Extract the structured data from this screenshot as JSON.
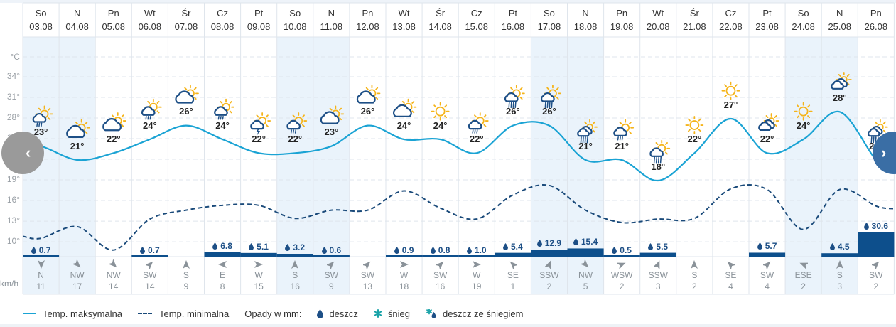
{
  "axis": {
    "unit_label": "°C",
    "y_ticks": [
      "34°",
      "31°",
      "28°",
      "25°",
      "22°",
      "19°",
      "16°",
      "13°",
      "10°"
    ],
    "y_tick_values": [
      34,
      31,
      28,
      25,
      22,
      19,
      16,
      13,
      10
    ],
    "wind_unit": "km/h"
  },
  "days": [
    {
      "dow": "So",
      "date": "03.08",
      "weekend": true,
      "icon": "rain-sun",
      "max": 23,
      "min": 10.5,
      "precip": "0.7",
      "precip_val": 0.7,
      "wind_dir": "N",
      "wind_speed": "11",
      "wind_rot": 180
    },
    {
      "dow": "N",
      "date": "04.08",
      "weekend": true,
      "icon": "cloud-sun",
      "max": 21,
      "min": 12.2,
      "precip": "",
      "precip_val": 0,
      "wind_dir": "NW",
      "wind_speed": "17",
      "wind_rot": 135
    },
    {
      "dow": "Pn",
      "date": "05.08",
      "weekend": false,
      "icon": "cloud-sun",
      "max": 22,
      "min": 8.8,
      "precip": "",
      "precip_val": 0,
      "wind_dir": "NW",
      "wind_speed": "14",
      "wind_rot": 135
    },
    {
      "dow": "Wt",
      "date": "06.08",
      "weekend": false,
      "icon": "rain-sun",
      "max": 24,
      "min": 13.3,
      "precip": "0.7",
      "precip_val": 0.7,
      "wind_dir": "SW",
      "wind_speed": "14",
      "wind_rot": 45
    },
    {
      "dow": "Śr",
      "date": "07.08",
      "weekend": false,
      "icon": "cloud-sun",
      "max": 26,
      "min": 14.6,
      "precip": "",
      "precip_val": 0,
      "wind_dir": "S",
      "wind_speed": "9",
      "wind_rot": 0
    },
    {
      "dow": "Cz",
      "date": "08.08",
      "weekend": false,
      "icon": "rain-sun",
      "max": 24,
      "min": 15.3,
      "precip": "6.8",
      "precip_val": 6.8,
      "wind_dir": "E",
      "wind_speed": "8",
      "wind_rot": 270
    },
    {
      "dow": "Pt",
      "date": "09.08",
      "weekend": false,
      "icon": "storm-sun",
      "max": 22,
      "min": 15.3,
      "precip": "5.1",
      "precip_val": 5.1,
      "wind_dir": "W",
      "wind_speed": "15",
      "wind_rot": 90
    },
    {
      "dow": "So",
      "date": "10.08",
      "weekend": true,
      "icon": "rain-sun",
      "max": 22,
      "min": 13.4,
      "precip": "3.2",
      "precip_val": 3.2,
      "wind_dir": "S",
      "wind_speed": "16",
      "wind_rot": 0
    },
    {
      "dow": "N",
      "date": "11.08",
      "weekend": true,
      "icon": "cloud-sun",
      "max": 23,
      "min": 14.6,
      "precip": "0.6",
      "precip_val": 0.6,
      "wind_dir": "SW",
      "wind_speed": "9",
      "wind_rot": 45
    },
    {
      "dow": "Pn",
      "date": "12.08",
      "weekend": false,
      "icon": "cloud-sun",
      "max": 26,
      "min": 14.6,
      "precip": "",
      "precip_val": 0,
      "wind_dir": "SW",
      "wind_speed": "13",
      "wind_rot": 45
    },
    {
      "dow": "Wt",
      "date": "13.08",
      "weekend": false,
      "icon": "cloud-sun",
      "max": 24,
      "min": 17.4,
      "precip": "0.9",
      "precip_val": 0.9,
      "wind_dir": "W",
      "wind_speed": "18",
      "wind_rot": 90
    },
    {
      "dow": "Śr",
      "date": "14.08",
      "weekend": false,
      "icon": "sun",
      "max": 24,
      "min": 14.9,
      "precip": "0.8",
      "precip_val": 0.8,
      "wind_dir": "SW",
      "wind_speed": "16",
      "wind_rot": 45
    },
    {
      "dow": "Cz",
      "date": "15.08",
      "weekend": false,
      "icon": "rain-sun",
      "max": 22,
      "min": 13.3,
      "precip": "1.0",
      "precip_val": 1.0,
      "wind_dir": "W",
      "wind_speed": "19",
      "wind_rot": 90
    },
    {
      "dow": "Pt",
      "date": "16.08",
      "weekend": false,
      "icon": "heavy-rain-sun",
      "max": 26,
      "min": 16.8,
      "precip": "5.4",
      "precip_val": 5.4,
      "wind_dir": "SE",
      "wind_speed": "1",
      "wind_rot": 315
    },
    {
      "dow": "So",
      "date": "17.08",
      "weekend": true,
      "icon": "heavy-rain-sun",
      "max": 26,
      "min": 18.2,
      "precip": "12.9",
      "precip_val": 12.9,
      "wind_dir": "SSW",
      "wind_speed": "2",
      "wind_rot": 22
    },
    {
      "dow": "N",
      "date": "18.08",
      "weekend": true,
      "icon": "heavy-rain-clouds-sun",
      "max": 21,
      "min": 14.6,
      "precip": "15.4",
      "precip_val": 15.4,
      "wind_dir": "NW",
      "wind_speed": "5",
      "wind_rot": 135
    },
    {
      "dow": "Pn",
      "date": "19.08",
      "weekend": false,
      "icon": "rain-sun",
      "max": 21,
      "min": 12.8,
      "precip": "0.5",
      "precip_val": 0.5,
      "wind_dir": "WSW",
      "wind_speed": "2",
      "wind_rot": 68
    },
    {
      "dow": "Wt",
      "date": "20.08",
      "weekend": false,
      "icon": "heavy-rain-sun",
      "max": 18,
      "min": 13.3,
      "precip": "5.5",
      "precip_val": 5.5,
      "wind_dir": "SSW",
      "wind_speed": "3",
      "wind_rot": 22
    },
    {
      "dow": "Śr",
      "date": "21.08",
      "weekend": false,
      "icon": "sun",
      "max": 22,
      "min": 13.4,
      "precip": "",
      "precip_val": 0,
      "wind_dir": "S",
      "wind_speed": "2",
      "wind_rot": 0
    },
    {
      "dow": "Cz",
      "date": "22.08",
      "weekend": false,
      "icon": "sun",
      "max": 27,
      "min": 17.7,
      "precip": "",
      "precip_val": 0,
      "wind_dir": "SE",
      "wind_speed": "4",
      "wind_rot": 315
    },
    {
      "dow": "Pt",
      "date": "23.08",
      "weekend": false,
      "icon": "clouds-sun",
      "max": 22,
      "min": 17.6,
      "precip": "5.7",
      "precip_val": 5.7,
      "wind_dir": "SW",
      "wind_speed": "4",
      "wind_rot": 45
    },
    {
      "dow": "So",
      "date": "24.08",
      "weekend": true,
      "icon": "sun",
      "max": 24,
      "min": 11.8,
      "precip": "",
      "precip_val": 0,
      "wind_dir": "ESE",
      "wind_speed": "2",
      "wind_rot": 292
    },
    {
      "dow": "N",
      "date": "25.08",
      "weekend": true,
      "icon": "clouds-sun",
      "max": 28,
      "min": 17.6,
      "precip": "4.5",
      "precip_val": 4.5,
      "wind_dir": "S",
      "wind_speed": "3",
      "wind_rot": 0
    },
    {
      "dow": "Pn",
      "date": "26.08",
      "weekend": false,
      "icon": "heavy-rain-clouds-sun",
      "max": 21,
      "min": 15.2,
      "precip": "30.6",
      "precip_val": 30.6,
      "wind_dir": "SW",
      "wind_speed": "2",
      "wind_rot": 45
    }
  ],
  "legend": {
    "max_label": "Temp. maksymalna",
    "min_label": "Temp. minimalna",
    "precip_label": "Opady w mm:",
    "rain_label": "deszcz",
    "snow_label": "śnieg",
    "sleet_label": "deszcz ze śniegiem"
  },
  "nav": {
    "prev": "‹",
    "next": "›"
  },
  "colors": {
    "max_line": "#1aa3d4",
    "min_line": "#1a4a7a",
    "precip_bar": "#0d4f8c",
    "weekend_bg": "#eaf3fb",
    "grid": "#dfe5ec",
    "sun": "#f5b41a",
    "cloud": "#1d4f86",
    "snow": "#1aa3a8"
  },
  "chart_data": {
    "type": "line",
    "title": "",
    "xlabel": "",
    "ylabel": "°C",
    "ylim": [
      8,
      37
    ],
    "categories": [
      "So 03.08",
      "N 04.08",
      "Pn 05.08",
      "Wt 06.08",
      "Śr 07.08",
      "Cz 08.08",
      "Pt 09.08",
      "So 10.08",
      "N 11.08",
      "Pn 12.08",
      "Wt 13.08",
      "Śr 14.08",
      "Cz 15.08",
      "Pt 16.08",
      "So 17.08",
      "N 18.08",
      "Pn 19.08",
      "Wt 20.08",
      "Śr 21.08",
      "Cz 22.08",
      "Pt 23.08",
      "So 24.08",
      "N 25.08",
      "Pn 26.08"
    ],
    "series": [
      {
        "name": "Temp. maksymalna",
        "style": "solid",
        "values": [
          23,
          21,
          22,
          24,
          26,
          24,
          22,
          22,
          23,
          26,
          24,
          24,
          22,
          26,
          26,
          21,
          21,
          18,
          22,
          27,
          22,
          24,
          28,
          21
        ]
      },
      {
        "name": "Temp. minimalna",
        "style": "dashed",
        "values": [
          10.5,
          12.2,
          8.8,
          13.3,
          14.6,
          15.3,
          15.3,
          13.4,
          14.6,
          14.6,
          17.4,
          14.9,
          13.3,
          16.8,
          18.2,
          14.6,
          12.8,
          13.3,
          13.4,
          17.7,
          17.6,
          11.8,
          17.6,
          15.2
        ]
      },
      {
        "name": "Opady w mm (deszcz)",
        "type": "bar",
        "values": [
          0.7,
          0,
          0,
          0.7,
          0,
          6.8,
          5.1,
          3.2,
          0.6,
          0,
          0.9,
          0.8,
          1.0,
          5.4,
          12.9,
          15.4,
          0.5,
          5.5,
          0,
          0,
          5.7,
          0,
          4.5,
          30.6
        ]
      }
    ],
    "wind": {
      "unit": "km/h",
      "directions": [
        "N",
        "NW",
        "NW",
        "SW",
        "S",
        "E",
        "W",
        "S",
        "SW",
        "SW",
        "W",
        "SW",
        "W",
        "SE",
        "SSW",
        "NW",
        "WSW",
        "SSW",
        "S",
        "SE",
        "SW",
        "ESE",
        "S",
        "SW"
      ],
      "speeds": [
        11,
        17,
        14,
        14,
        9,
        8,
        15,
        16,
        9,
        13,
        18,
        16,
        19,
        1,
        2,
        5,
        2,
        3,
        2,
        4,
        4,
        2,
        3,
        2
      ]
    },
    "grid": true,
    "legend_position": "bottom"
  }
}
